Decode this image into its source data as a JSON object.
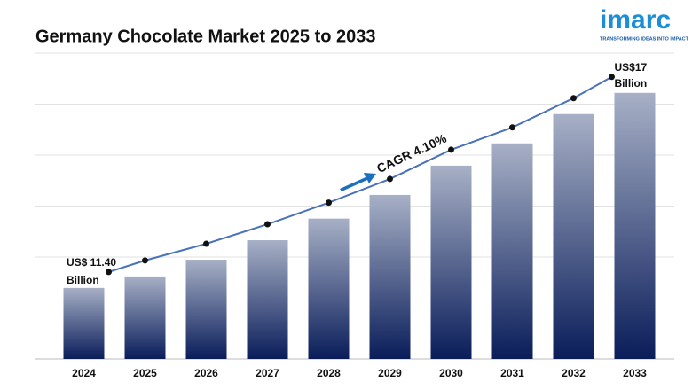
{
  "chart_data": {
    "type": "bar",
    "title": "Germany Chocolate Market 2025 to 2033",
    "categories": [
      "2024",
      "2025",
      "2026",
      "2027",
      "2028",
      "2029",
      "2030",
      "2031",
      "2032",
      "2033"
    ],
    "values": [
      11.4,
      11.73,
      12.21,
      12.77,
      13.39,
      14.07,
      14.91,
      15.55,
      16.39,
      17
    ],
    "value_labels": [
      [
        "US$ 11.40",
        "Billion"
      ],
      null,
      null,
      null,
      null,
      null,
      null,
      null,
      null,
      [
        "US$17",
        "Billion"
      ]
    ],
    "annotation": "CAGR 4.10%",
    "ylim": [
      9.36,
      18.14
    ],
    "grid": true,
    "bar_color_top": "#a7b0c6",
    "bar_color_bottom": "#0a1d5a",
    "line_color": "#4a72b8"
  },
  "logo": {
    "name": "imarc",
    "tagline": "TRANSFORMING IDEAS INTO IMPACT"
  }
}
